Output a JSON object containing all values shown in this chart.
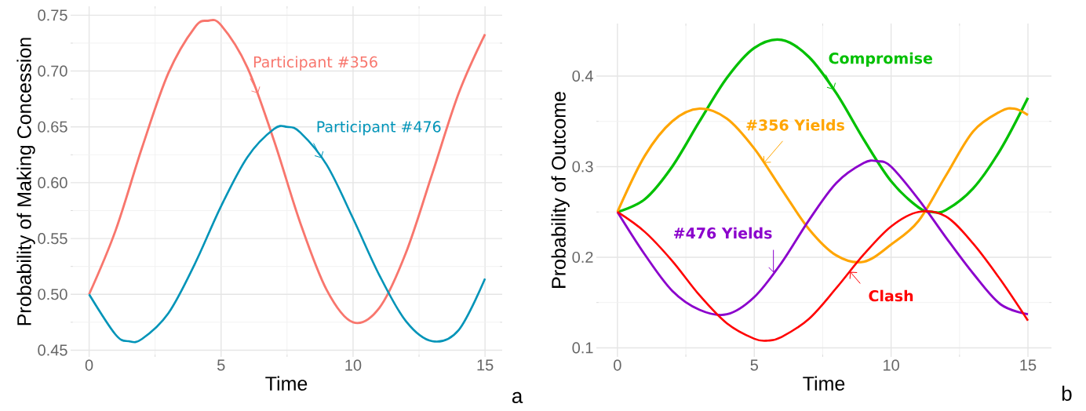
{
  "chart_data": [
    {
      "type": "line",
      "xlabel": "Time",
      "ylabel": "Probability of Making Concession",
      "xlim": [
        -0.7,
        15.65
      ],
      "ylim": [
        0.444,
        0.758
      ],
      "xticks": [
        0,
        5,
        10,
        15
      ],
      "yticks": [
        {
          "value": 0.45,
          "label": "0.45"
        },
        {
          "value": 0.5,
          "label": "0.50"
        },
        {
          "value": 0.55,
          "label": "0.55"
        },
        {
          "value": 0.6,
          "label": "0.60"
        },
        {
          "value": 0.65,
          "label": "0.65"
        },
        {
          "value": 0.7,
          "label": "0.70"
        },
        {
          "value": 0.75,
          "label": "0.75"
        }
      ],
      "grid": true,
      "series": [
        {
          "color": "#f8766d",
          "x": [
            0,
            1,
            2,
            3,
            4,
            4.5,
            5,
            6,
            7,
            8,
            9,
            10,
            11,
            12,
            13,
            14,
            15
          ],
          "values": [
            0.5,
            0.557,
            0.631,
            0.698,
            0.739,
            0.745,
            0.741,
            0.703,
            0.638,
            0.564,
            0.504,
            0.475,
            0.488,
            0.537,
            0.608,
            0.68,
            0.733
          ]
        },
        {
          "color": "#0094b8",
          "x": [
            0,
            1,
            1.5,
            2,
            3,
            4,
            5,
            6,
            7,
            7.5,
            8,
            9,
            10,
            11,
            12,
            13,
            14,
            15
          ],
          "values": [
            0.5,
            0.464,
            0.458,
            0.46,
            0.483,
            0.527,
            0.579,
            0.623,
            0.648,
            0.65,
            0.645,
            0.616,
            0.568,
            0.517,
            0.476,
            0.458,
            0.468,
            0.514
          ]
        }
      ],
      "annotations": [
        {
          "text": "Participant #356",
          "x": 6.4,
          "y": 0.68
        },
        {
          "text": "Participant #476",
          "x": 8.8,
          "y": 0.622
        },
        "a"
      ]
    },
    {
      "type": "line",
      "xlabel": "Time",
      "ylabel": "Probability of Outcome",
      "xlim": [
        -0.77,
        15.86
      ],
      "ylim": [
        0.09,
        0.458
      ],
      "xticks": [
        0,
        5,
        10,
        15
      ],
      "yticks": [
        0.1,
        0.2,
        0.3,
        0.4
      ],
      "grid": true,
      "series": [
        {
          "color": "#00c000",
          "x": [
            0,
            1,
            2,
            3,
            4,
            5,
            6,
            7,
            8,
            9,
            10,
            11,
            11.5,
            12,
            13,
            14,
            15
          ],
          "values": [
            0.25,
            0.264,
            0.3,
            0.35,
            0.398,
            0.431,
            0.44,
            0.421,
            0.381,
            0.33,
            0.284,
            0.255,
            0.25,
            0.252,
            0.276,
            0.319,
            0.376
          ]
        },
        {
          "color": "#ffa500",
          "x": [
            0,
            1,
            2,
            3,
            4,
            5,
            6,
            7,
            8,
            9,
            10,
            11,
            12,
            13,
            14,
            14.5,
            15
          ],
          "values": [
            0.25,
            0.312,
            0.35,
            0.364,
            0.353,
            0.32,
            0.275,
            0.231,
            0.202,
            0.195,
            0.214,
            0.24,
            0.29,
            0.339,
            0.361,
            0.364,
            0.357
          ]
        },
        {
          "color": "#8b00cc",
          "x": [
            0,
            1,
            2,
            3,
            4,
            5,
            6,
            7,
            8,
            9,
            9.5,
            10,
            11,
            12,
            13,
            14,
            15
          ],
          "values": [
            0.25,
            0.203,
            0.163,
            0.142,
            0.137,
            0.156,
            0.194,
            0.241,
            0.282,
            0.304,
            0.306,
            0.3,
            0.264,
            0.222,
            0.182,
            0.148,
            0.137
          ]
        },
        {
          "color": "#ff0000",
          "x": [
            0,
            1,
            2,
            3,
            4,
            5,
            5.5,
            6,
            7,
            8,
            9,
            10,
            11,
            12,
            13,
            14,
            15
          ],
          "values": [
            0.25,
            0.228,
            0.196,
            0.158,
            0.127,
            0.11,
            0.108,
            0.112,
            0.132,
            0.166,
            0.203,
            0.234,
            0.25,
            0.245,
            0.215,
            0.175,
            0.13
          ]
        }
      ],
      "annotations": [
        {
          "text": "Compromise",
          "x": 7.9,
          "y": 0.385
        },
        {
          "text": "#356 Yields",
          "x": 5.35,
          "y": 0.304
        },
        {
          "text": "#476 Yields",
          "x": 5.7,
          "y": 0.183
        },
        {
          "text": "Clash",
          "x": 8.5,
          "y": 0.184
        },
        "b"
      ]
    }
  ]
}
